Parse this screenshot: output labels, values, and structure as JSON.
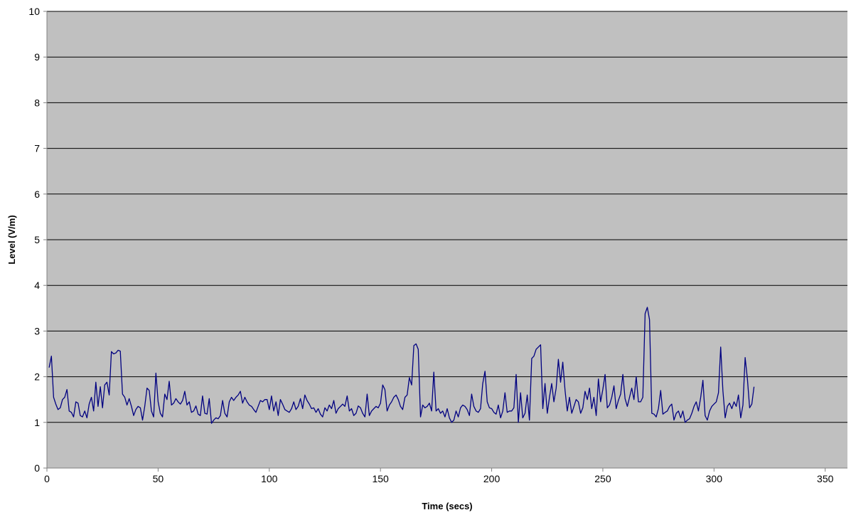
{
  "chart_data": {
    "type": "line",
    "title": "",
    "xlabel": "Time (secs)",
    "ylabel": "Level (V/m)",
    "xlim": [
      0,
      360
    ],
    "ylim": [
      0,
      10
    ],
    "x_ticks": [
      0,
      50,
      100,
      150,
      200,
      250,
      300,
      350
    ],
    "y_ticks": [
      0,
      1,
      2,
      3,
      4,
      5,
      6,
      7,
      8,
      9,
      10
    ],
    "grid": "horizontal",
    "legend": "none",
    "colors": {
      "plot_background": "#c0c0c0",
      "line": "#000080",
      "gridline": "#000000"
    },
    "series": [
      {
        "x_start": 1,
        "x_step": 1,
        "values": [
          2.2,
          2.45,
          1.55,
          1.4,
          1.28,
          1.32,
          1.5,
          1.55,
          1.72,
          1.25,
          1.22,
          1.12,
          1.45,
          1.42,
          1.15,
          1.12,
          1.25,
          1.1,
          1.4,
          1.55,
          1.25,
          1.88,
          1.35,
          1.78,
          1.32,
          1.82,
          1.88,
          1.6,
          2.55,
          2.5,
          2.52,
          2.58,
          2.56,
          1.62,
          1.55,
          1.38,
          1.52,
          1.35,
          1.15,
          1.28,
          1.35,
          1.32,
          1.05,
          1.35,
          1.75,
          1.7,
          1.25,
          1.12,
          2.08,
          1.45,
          1.2,
          1.12,
          1.62,
          1.5,
          1.9,
          1.38,
          1.42,
          1.52,
          1.45,
          1.4,
          1.48,
          1.68,
          1.38,
          1.45,
          1.22,
          1.25,
          1.36,
          1.18,
          1.15,
          1.58,
          1.2,
          1.18,
          1.52,
          0.98,
          1.05,
          1.1,
          1.08,
          1.15,
          1.48,
          1.2,
          1.12,
          1.45,
          1.55,
          1.48,
          1.55,
          1.6,
          1.68,
          1.42,
          1.55,
          1.45,
          1.38,
          1.35,
          1.28,
          1.22,
          1.35,
          1.48,
          1.45,
          1.5,
          1.5,
          1.28,
          1.58,
          1.25,
          1.45,
          1.15,
          1.5,
          1.4,
          1.28,
          1.25,
          1.22,
          1.3,
          1.45,
          1.28,
          1.35,
          1.52,
          1.3,
          1.6,
          1.48,
          1.4,
          1.3,
          1.32,
          1.22,
          1.3,
          1.18,
          1.12,
          1.32,
          1.25,
          1.38,
          1.3,
          1.48,
          1.2,
          1.3,
          1.35,
          1.4,
          1.35,
          1.58,
          1.25,
          1.3,
          1.15,
          1.2,
          1.36,
          1.32,
          1.2,
          1.12,
          1.62,
          1.15,
          1.25,
          1.3,
          1.35,
          1.32,
          1.42,
          1.82,
          1.72,
          1.25,
          1.38,
          1.45,
          1.55,
          1.6,
          1.5,
          1.35,
          1.28,
          1.55,
          1.6,
          1.98,
          1.82,
          2.68,
          2.72,
          2.6,
          1.12,
          1.38,
          1.32,
          1.35,
          1.42,
          1.25,
          2.1,
          1.25,
          1.3,
          1.2,
          1.25,
          1.12,
          1.3,
          1.1,
          1.0,
          1.05,
          1.25,
          1.12,
          1.32,
          1.38,
          1.35,
          1.28,
          1.15,
          1.62,
          1.35,
          1.25,
          1.22,
          1.3,
          1.85,
          2.12,
          1.45,
          1.32,
          1.3,
          1.22,
          1.18,
          1.38,
          1.1,
          1.25,
          1.65,
          1.22,
          1.25,
          1.25,
          1.32,
          2.05,
          1.0,
          1.65,
          1.1,
          1.2,
          1.6,
          1.05,
          2.4,
          2.45,
          2.6,
          2.65,
          2.7,
          1.3,
          1.85,
          1.2,
          1.55,
          1.85,
          1.45,
          1.75,
          2.38,
          1.88,
          2.32,
          1.7,
          1.25,
          1.55,
          1.2,
          1.35,
          1.5,
          1.45,
          1.2,
          1.32,
          1.68,
          1.5,
          1.75,
          1.3,
          1.55,
          1.15,
          1.95,
          1.45,
          1.72,
          2.05,
          1.32,
          1.38,
          1.55,
          1.8,
          1.3,
          1.48,
          1.62,
          2.05,
          1.52,
          1.35,
          1.55,
          1.75,
          1.5,
          2.0,
          1.45,
          1.45,
          1.55,
          3.38,
          3.52,
          3.25,
          1.2,
          1.18,
          1.12,
          1.3,
          1.7,
          1.18,
          1.22,
          1.25,
          1.35,
          1.4,
          1.05,
          1.2,
          1.25,
          1.1,
          1.25,
          1.0,
          1.05,
          1.08,
          1.2,
          1.35,
          1.45,
          1.25,
          1.55,
          1.92,
          1.15,
          1.05,
          1.25,
          1.35,
          1.4,
          1.45,
          1.65,
          2.65,
          1.7,
          1.1,
          1.35,
          1.42,
          1.3,
          1.45,
          1.35,
          1.6,
          1.1,
          1.38,
          2.42,
          1.95,
          1.32,
          1.4,
          1.78
        ]
      }
    ]
  }
}
